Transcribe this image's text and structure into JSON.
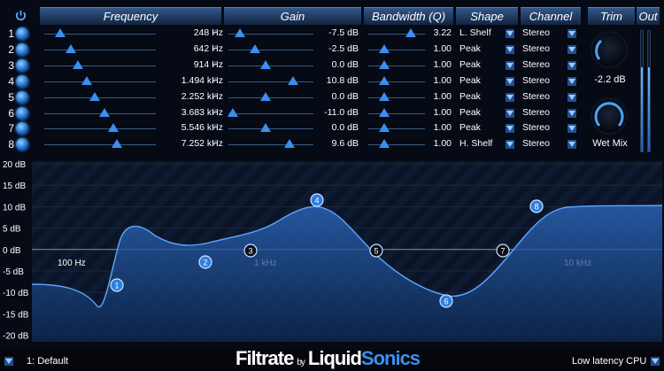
{
  "headers": {
    "frequency": "Frequency",
    "gain": "Gain",
    "bandwidth": "Bandwidth (Q)",
    "shape": "Shape",
    "channel": "Channel",
    "trim": "Trim",
    "out": "Out"
  },
  "bands": [
    {
      "num": "1",
      "freq": "248 Hz",
      "gain": "-7.5 dB",
      "bw": "3.22",
      "shape": "L. Shelf",
      "channel": "Stereo",
      "freq_pos": 0.14,
      "gain_pos": 0.14,
      "bw_pos": 0.75
    },
    {
      "num": "2",
      "freq": "642 Hz",
      "gain": "-2.5 dB",
      "bw": "1.00",
      "shape": "Peak",
      "channel": "Stereo",
      "freq_pos": 0.24,
      "gain_pos": 0.31,
      "bw_pos": 0.28
    },
    {
      "num": "3",
      "freq": "914 Hz",
      "gain": "0.0 dB",
      "bw": "1.00",
      "shape": "Peak",
      "channel": "Stereo",
      "freq_pos": 0.3,
      "gain_pos": 0.44,
      "bw_pos": 0.28
    },
    {
      "num": "4",
      "freq": "1.494 kHz",
      "gain": "10.8 dB",
      "bw": "1.00",
      "shape": "Peak",
      "channel": "Stereo",
      "freq_pos": 0.38,
      "gain_pos": 0.76,
      "bw_pos": 0.28
    },
    {
      "num": "5",
      "freq": "2.252 kHz",
      "gain": "0.0 dB",
      "bw": "1.00",
      "shape": "Peak",
      "channel": "Stereo",
      "freq_pos": 0.45,
      "gain_pos": 0.44,
      "bw_pos": 0.28
    },
    {
      "num": "6",
      "freq": "3.683 kHz",
      "gain": "-11.0 dB",
      "bw": "1.00",
      "shape": "Peak",
      "channel": "Stereo",
      "freq_pos": 0.54,
      "gain_pos": 0.05,
      "bw_pos": 0.28
    },
    {
      "num": "7",
      "freq": "5.546 kHz",
      "gain": "0.0 dB",
      "bw": "1.00",
      "shape": "Peak",
      "channel": "Stereo",
      "freq_pos": 0.62,
      "gain_pos": 0.44,
      "bw_pos": 0.28
    },
    {
      "num": "8",
      "freq": "7.252 kHz",
      "gain": "9.6 dB",
      "bw": "1.00",
      "shape": "H. Shelf",
      "channel": "Stereo",
      "freq_pos": 0.65,
      "gain_pos": 0.72,
      "bw_pos": 0.28
    }
  ],
  "trim": {
    "value": "-2.2 dB"
  },
  "wetmix": {
    "label": "Wet Mix"
  },
  "graph": {
    "y_ticks": [
      "20 dB",
      "15 dB",
      "10 dB",
      "5 dB",
      "0 dB",
      "-5 dB",
      "-10 dB",
      "-15 dB",
      "-20 dB"
    ],
    "x_labels": [
      "100 Hz",
      "1 kHz",
      "10 kHz"
    ]
  },
  "footer": {
    "preset": "1: Default",
    "brand1": "Filtrate",
    "brand_by": "by",
    "brand2": "Liquid",
    "brand3": "Sonics",
    "mode": "Low latency CPU"
  }
}
